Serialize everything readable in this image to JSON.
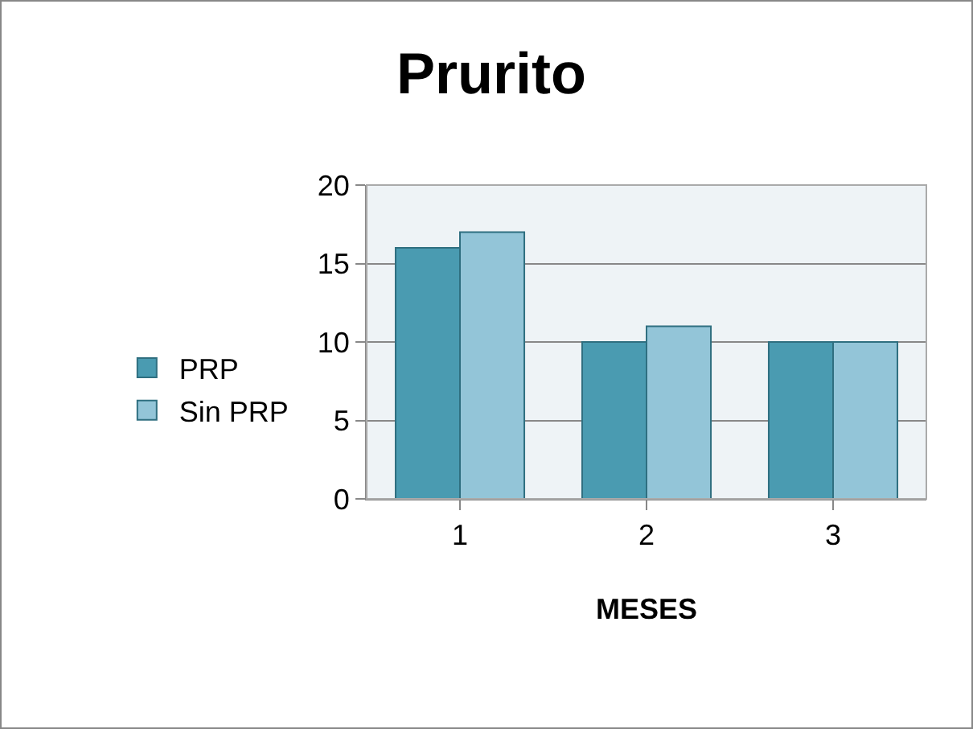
{
  "chart_data": {
    "type": "bar",
    "title": "Prurito",
    "xlabel": "MESES",
    "categories": [
      "1",
      "2",
      "3"
    ],
    "series": [
      {
        "name": "PRP",
        "color": "#4a9bb1",
        "values": [
          16,
          10,
          10
        ]
      },
      {
        "name": "Sin PRP",
        "color": "#93c5d8",
        "values": [
          17,
          11,
          10
        ]
      }
    ],
    "ylim": [
      0,
      20
    ],
    "yticks": [
      0,
      5,
      10,
      15,
      20
    ],
    "grid": "y",
    "legend": "left"
  }
}
